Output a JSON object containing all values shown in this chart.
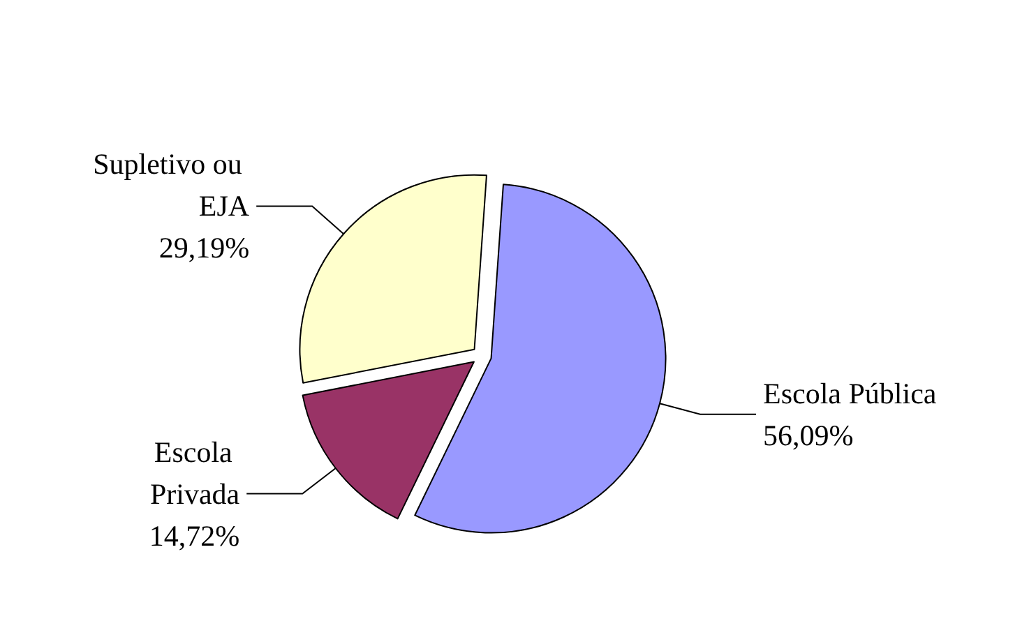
{
  "chart_data": {
    "type": "pie",
    "categories": [
      "Escola Pública",
      "Escola Privada",
      "Supletivo ou EJA"
    ],
    "values": [
      56.09,
      14.72,
      29.19
    ],
    "colors": [
      "#9999ff",
      "#993366",
      "#ffffcc"
    ],
    "value_labels": [
      "56,09%",
      "14,72%",
      "29,19%"
    ],
    "legend": false
  }
}
